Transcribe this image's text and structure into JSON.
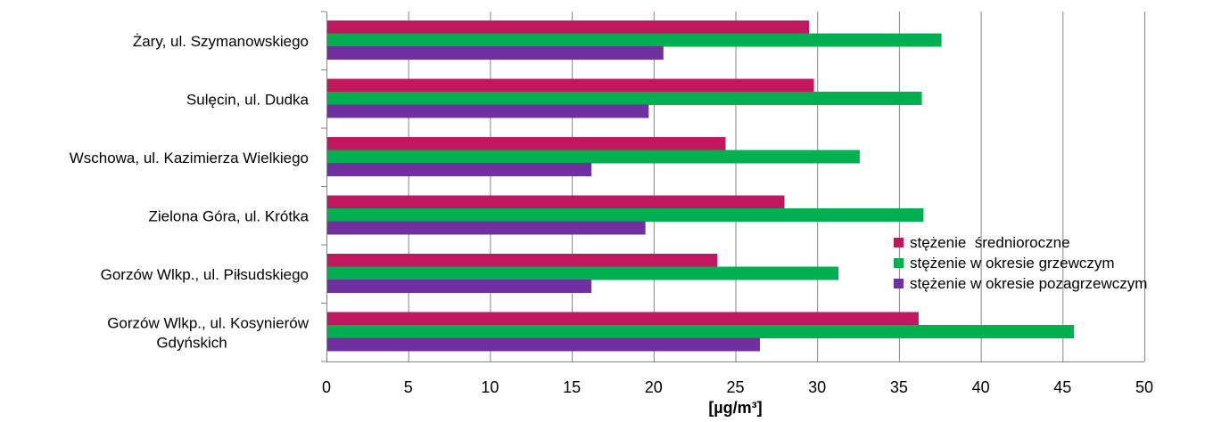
{
  "chart_data": {
    "type": "bar",
    "orientation": "horizontal",
    "title": "",
    "xlabel": "[µg/m³]",
    "ylabel": "",
    "xlim": [
      0,
      50
    ],
    "xticks": [
      0,
      5,
      10,
      15,
      20,
      25,
      30,
      35,
      40,
      45,
      50
    ],
    "grid": "vertical",
    "legend_position": "right",
    "categories": [
      [
        "Żary, ul. Szymanowskiego"
      ],
      [
        "Sulęcin, ul. Dudka"
      ],
      [
        "Wschowa, ul. Kazimierza Wielkiego"
      ],
      [
        "Zielona Góra, ul. Krótka"
      ],
      [
        "Gorzów Wlkp., ul. Piłsudskiego"
      ],
      [
        "Gorzów Wlkp., ul. Kosynierów",
        "Gdyńskich"
      ]
    ],
    "series": [
      {
        "name": "stężenie  średnioroczne",
        "color": "#C0175F",
        "values": [
          29.5,
          29.8,
          24.4,
          28.0,
          23.9,
          36.2
        ]
      },
      {
        "name": "stężenie w okresie grzewczym",
        "color": "#00B050",
        "values": [
          37.6,
          36.4,
          32.6,
          36.5,
          31.3,
          45.7
        ]
      },
      {
        "name": "stężenie w okresie pozagrzewczym",
        "color": "#7030A0",
        "values": [
          20.6,
          19.7,
          16.2,
          19.5,
          16.2,
          26.5
        ]
      }
    ]
  }
}
